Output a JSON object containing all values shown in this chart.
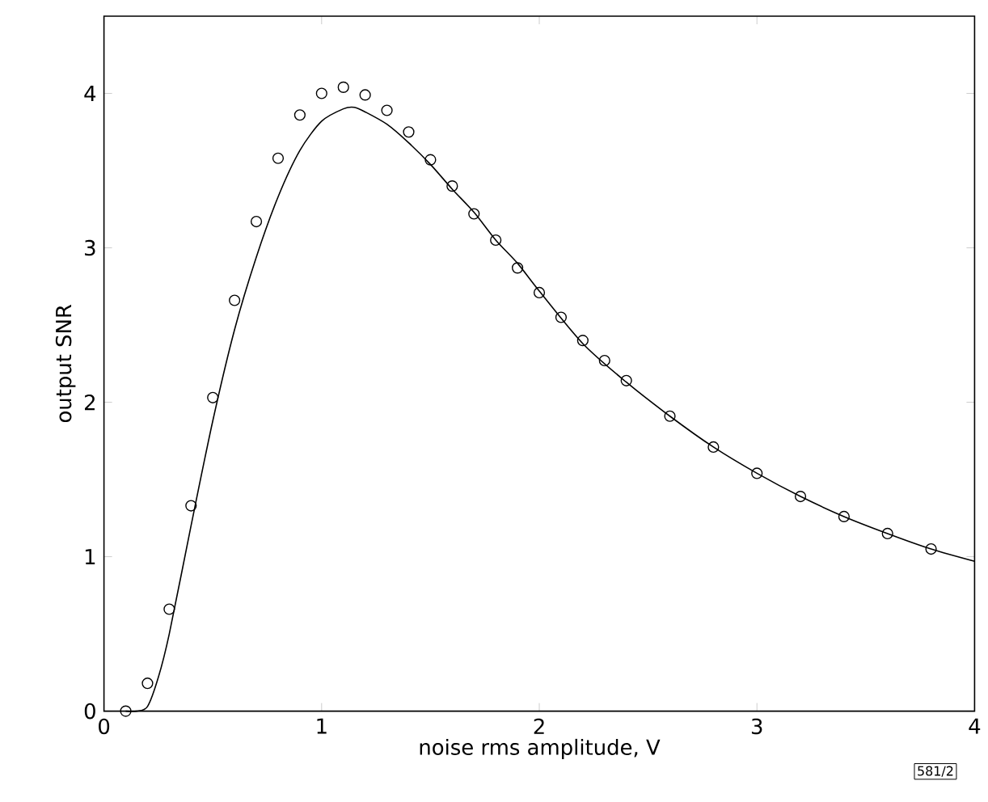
{
  "chart_data": {
    "type": "line",
    "xlabel": "noise rms amplitude, V",
    "ylabel": "output SNR",
    "xlim": [
      0,
      4
    ],
    "ylim": [
      0,
      4.5
    ],
    "xticks": [
      0,
      1,
      2,
      3,
      4
    ],
    "yticks": [
      0,
      1,
      2,
      3,
      4
    ],
    "grid": false,
    "legend": false,
    "annotations": [
      "581/2"
    ],
    "series": [
      {
        "type": "scatter",
        "marker": "circle",
        "color": "#000000",
        "x": [
          0.1,
          0.2,
          0.3,
          0.4,
          0.5,
          0.6,
          0.7,
          0.8,
          0.9,
          1.0,
          1.1,
          1.2,
          1.3,
          1.4,
          1.5,
          1.6,
          1.7,
          1.8,
          1.9,
          2.0,
          2.1,
          2.2,
          2.3,
          2.4,
          2.6,
          2.8,
          3.0,
          3.2,
          3.4,
          3.6,
          3.8
        ],
        "values": [
          0.0,
          0.18,
          0.66,
          1.33,
          2.03,
          2.66,
          3.17,
          3.58,
          3.86,
          4.0,
          4.04,
          3.99,
          3.89,
          3.75,
          3.57,
          3.4,
          3.22,
          3.05,
          2.87,
          2.71,
          2.55,
          2.4,
          2.27,
          2.14,
          1.91,
          1.71,
          1.54,
          1.39,
          1.26,
          1.15,
          1.05
        ]
      },
      {
        "marker": "none",
        "line_style": "solid",
        "color": "#000000",
        "x": [
          0.1,
          0.15,
          0.2,
          0.25,
          0.3,
          0.4,
          0.5,
          0.6,
          0.7,
          0.8,
          0.9,
          1.0,
          1.1,
          1.15,
          1.2,
          1.3,
          1.4,
          1.5,
          1.6,
          1.7,
          1.8,
          1.9,
          2.0,
          2.2,
          2.4,
          2.6,
          2.8,
          3.0,
          3.2,
          3.4,
          3.6,
          3.8,
          4.0
        ],
        "values": [
          0.0,
          0.0,
          0.03,
          0.22,
          0.5,
          1.2,
          1.88,
          2.47,
          2.94,
          3.33,
          3.63,
          3.82,
          3.9,
          3.91,
          3.88,
          3.8,
          3.68,
          3.54,
          3.38,
          3.23,
          3.05,
          2.9,
          2.72,
          2.38,
          2.13,
          1.91,
          1.71,
          1.54,
          1.39,
          1.26,
          1.15,
          1.05,
          0.97
        ]
      }
    ]
  }
}
